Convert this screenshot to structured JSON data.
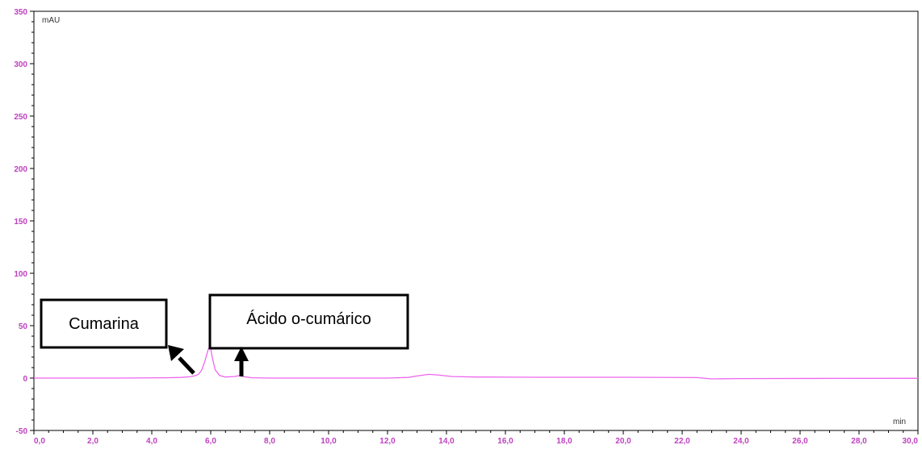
{
  "colors": {
    "trace": "#ee66ee",
    "axis": "#000000",
    "tick_label": "#c040c0",
    "background": "#ffffff"
  },
  "chart_data": {
    "type": "line",
    "title": "",
    "xlabel": "min",
    "ylabel": "mAU",
    "xlim": [
      0,
      30
    ],
    "ylim": [
      -50,
      350
    ],
    "grid": false,
    "x_ticks": [
      "0,0",
      "2,0",
      "4,0",
      "6,0",
      "8,0",
      "10,0",
      "12,0",
      "14,0",
      "16,0",
      "18,0",
      "20,0",
      "22,0",
      "24,0",
      "26,0",
      "28,0",
      "30,0"
    ],
    "y_ticks": [
      "-50",
      "0",
      "50",
      "100",
      "150",
      "200",
      "250",
      "300",
      "350"
    ],
    "series": [
      {
        "points": [
          [
            0.0,
            0.0
          ],
          [
            3.0,
            0.0
          ],
          [
            4.5,
            0.3
          ],
          [
            5.0,
            0.6
          ],
          [
            5.3,
            1.2
          ],
          [
            5.5,
            2.5
          ],
          [
            5.6,
            4.0
          ],
          [
            5.7,
            8.0
          ],
          [
            5.8,
            16.0
          ],
          [
            5.9,
            26.0
          ],
          [
            5.95,
            30.0
          ],
          [
            6.0,
            28.0
          ],
          [
            6.05,
            20.0
          ],
          [
            6.15,
            8.0
          ],
          [
            6.3,
            2.5
          ],
          [
            6.5,
            1.0
          ],
          [
            6.8,
            1.5
          ],
          [
            7.0,
            2.5
          ],
          [
            7.1,
            1.5
          ],
          [
            7.4,
            0.3
          ],
          [
            8.0,
            0.0
          ],
          [
            12.0,
            0.0
          ],
          [
            12.7,
            0.6
          ],
          [
            13.0,
            2.0
          ],
          [
            13.4,
            3.5
          ],
          [
            13.7,
            3.0
          ],
          [
            14.2,
            1.5
          ],
          [
            15.0,
            1.0
          ],
          [
            17.0,
            0.8
          ],
          [
            20.0,
            0.8
          ],
          [
            22.5,
            0.5
          ],
          [
            23.0,
            -0.8
          ],
          [
            24.0,
            -0.5
          ],
          [
            27.0,
            -0.3
          ],
          [
            30.0,
            -0.2
          ]
        ]
      }
    ],
    "annotations": [
      {
        "text": "Cumarina",
        "points_to": [
          5.4,
          2.0
        ]
      },
      {
        "text": "Ácido o-cumárico",
        "points_to": [
          7.0,
          2.5
        ]
      }
    ]
  }
}
